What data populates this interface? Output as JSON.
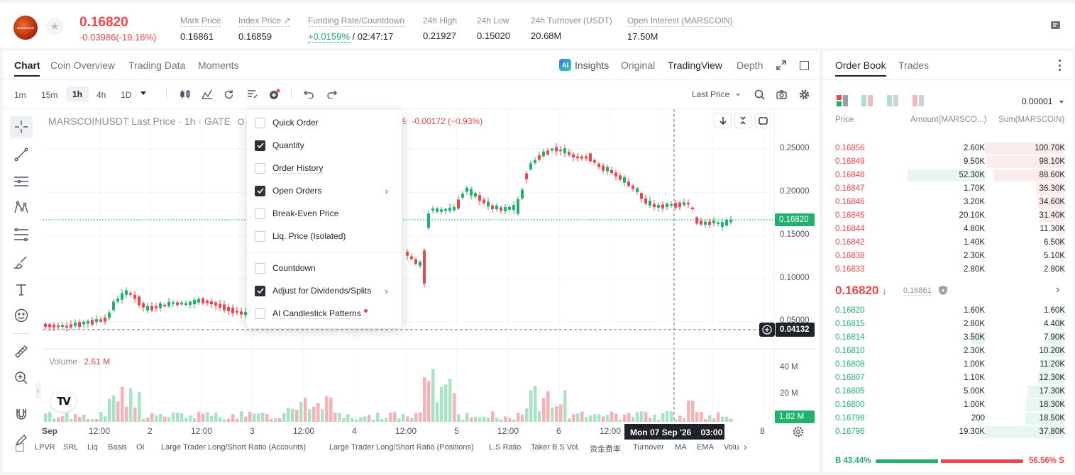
{
  "ticker": {
    "price": "0.16820",
    "change": "-0.03986(-19.16%)",
    "stats": [
      {
        "label": "Mark Price",
        "value": "0.16861"
      },
      {
        "label": "Index Price ↗",
        "value": "0.16859"
      },
      {
        "label": "Funding Rate/Countdown",
        "value": "+0.0159%",
        "value2": "/ 02:47:17"
      },
      {
        "label": "24h High",
        "value": "0.21927"
      },
      {
        "label": "24h Low",
        "value": "0.15020"
      },
      {
        "label": "24h Turnover (USDT)",
        "value": "20.68M"
      },
      {
        "label": "Open Interest (MARSCOIN)",
        "value": "17.50M"
      }
    ],
    "logo_text": "MARSCOIN"
  },
  "chart_tabs": [
    "Chart",
    "Coin Overview",
    "Trading Data",
    "Moments"
  ],
  "view_tabs": {
    "insights": "Insights",
    "original": "Original",
    "tradingview": "TradingView",
    "depth": "Depth"
  },
  "timeframes": [
    "1m",
    "15m",
    "1h",
    "4h",
    "1D"
  ],
  "price_type": "Last Price",
  "chart_header": {
    "symbol_line": "MARSCOINUSDT Last Price · 1h · GATE",
    "o_letter": "O",
    "change_tail": "9  -0.00172 (−0.93%)"
  },
  "menu": {
    "items": [
      {
        "label": "Quick Order",
        "checked": false
      },
      {
        "label": "Quantity",
        "checked": true
      },
      {
        "label": "Order History",
        "checked": false
      },
      {
        "label": "Open Orders",
        "checked": true,
        "submenu": true
      },
      {
        "label": "Break-Even Price",
        "checked": false
      },
      {
        "label": "Liq. Price (Isolated)",
        "checked": false
      },
      {
        "label": "Countdown",
        "checked": false
      },
      {
        "label": "Adjust for Dividends/Splits",
        "checked": true,
        "submenu": true
      },
      {
        "label": "AI Candlestick Patterns",
        "checked": false,
        "dot": true
      }
    ]
  },
  "price_axis": [
    "0.25000",
    "0.20000",
    "0.15000",
    "0.10000",
    "0.05000"
  ],
  "last_price_tag": "0.16820",
  "crosshair_price_tag": "0.04132",
  "volume": {
    "label": "Volume",
    "value": "2.61 M",
    "axis": [
      "40 M",
      "20 M"
    ],
    "tag": "1.82 M"
  },
  "time_axis": [
    "Sep",
    "12:00",
    "2",
    "12:00",
    "3",
    "12:00",
    "4",
    "12:00",
    "5",
    "12:00",
    "6",
    "12:00",
    "8"
  ],
  "crosshair_time": "Mon 07 Sep '26    03:00",
  "indicators": [
    "LPVR",
    "SRL",
    "Liq",
    "Basis",
    "OI",
    "Large Trader Long/Short Ratio (Accounts)",
    "Large Trader Long/Short Ratio (Positions)",
    "L.S Ratio",
    "Taker B.S Vol.",
    "资金费率",
    "Turnover",
    "MA",
    "EMA",
    "Volu"
  ],
  "orderbook": {
    "tabs": [
      "Order Book",
      "Trades"
    ],
    "precision": "0.00001",
    "headers": [
      "Price",
      "Amount(MARSCO...)",
      "Sum(MARSCOIN)"
    ],
    "asks": [
      {
        "price": "0.16856",
        "amount": "2.60K",
        "sum": "100.70K",
        "depth": 1.0,
        "amt_frac": 0
      },
      {
        "price": "0.16849",
        "amount": "9.50K",
        "sum": "98.10K",
        "depth": 0.97,
        "amt_frac": 0
      },
      {
        "price": "0.16848",
        "amount": "52.30K",
        "sum": "88.60K",
        "depth": 0.88,
        "amt_frac": 0.52
      },
      {
        "price": "0.16847",
        "amount": "1.70K",
        "sum": "36.30K",
        "depth": 0.36,
        "amt_frac": 0
      },
      {
        "price": "0.16846",
        "amount": "3.20K",
        "sum": "34.60K",
        "depth": 0.34,
        "amt_frac": 0
      },
      {
        "price": "0.16845",
        "amount": "20.10K",
        "sum": "31.40K",
        "depth": 0.31,
        "amt_frac": 0
      },
      {
        "price": "0.16844",
        "amount": "4.80K",
        "sum": "11.30K",
        "depth": 0.11,
        "amt_frac": 0
      },
      {
        "price": "0.16842",
        "amount": "1.40K",
        "sum": "6.50K",
        "depth": 0.06,
        "amt_frac": 0
      },
      {
        "price": "0.16838",
        "amount": "2.30K",
        "sum": "5.10K",
        "depth": 0.05,
        "amt_frac": 0
      },
      {
        "price": "0.16833",
        "amount": "2.80K",
        "sum": "2.80K",
        "depth": 0.03,
        "amt_frac": 0
      }
    ],
    "mid_price": "0.16820",
    "mark_price": "0.16861",
    "bids": [
      {
        "price": "0.16820",
        "amount": "1.60K",
        "sum": "1.60K",
        "depth": 0.04,
        "amt_frac": 0
      },
      {
        "price": "0.16815",
        "amount": "2.80K",
        "sum": "4.40K",
        "depth": 0.12,
        "amt_frac": 0
      },
      {
        "price": "0.16814",
        "amount": "3.50K",
        "sum": "7.90K",
        "depth": 0.21,
        "amt_frac": 0.09
      },
      {
        "price": "0.16810",
        "amount": "2.30K",
        "sum": "10.20K",
        "depth": 0.27,
        "amt_frac": 0
      },
      {
        "price": "0.16808",
        "amount": "1.00K",
        "sum": "11.20K",
        "depth": 0.3,
        "amt_frac": 0
      },
      {
        "price": "0.16807",
        "amount": "1.10K",
        "sum": "12.30K",
        "depth": 0.33,
        "amt_frac": 0
      },
      {
        "price": "0.16805",
        "amount": "5.00K",
        "sum": "17.30K",
        "depth": 0.46,
        "amt_frac": 0
      },
      {
        "price": "0.16800",
        "amount": "1.00K",
        "sum": "18.30K",
        "depth": 0.48,
        "amt_frac": 0
      },
      {
        "price": "0.16798",
        "amount": "200",
        "sum": "18.50K",
        "depth": 0.49,
        "amt_frac": 0
      },
      {
        "price": "0.16796",
        "amount": "19.30K",
        "sum": "37.80K",
        "depth": 1.0,
        "amt_frac": 0
      }
    ],
    "buy_ratio": "B 43.44%",
    "sell_ratio": "56.56% S",
    "buy_fraction": 0.4344
  },
  "colors": {
    "up": "#20b26c",
    "down": "#ef454a",
    "up_soft": "#e7f6ee",
    "down_soft": "#fdecec"
  }
}
